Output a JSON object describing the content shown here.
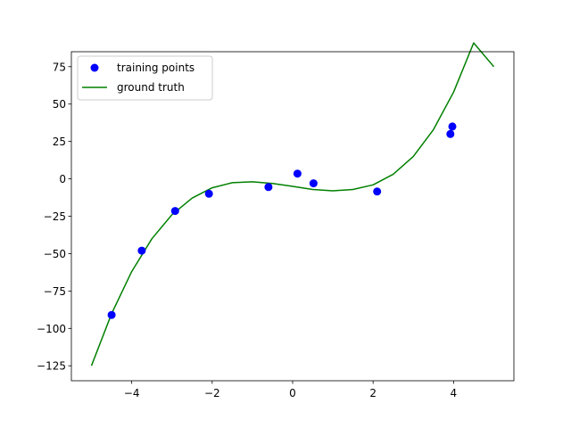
{
  "chart_data": {
    "type": "scatter",
    "title": "",
    "xlabel": "",
    "ylabel": "",
    "xlim": [
      -5.5,
      5.5
    ],
    "ylim": [
      -135,
      85
    ],
    "x_ticks": [
      -4,
      -2,
      0,
      2,
      4
    ],
    "y_ticks": [
      75,
      50,
      25,
      0,
      -25,
      -50,
      -75,
      -100,
      -125
    ],
    "x_tick_labels": [
      "−4",
      "−2",
      "0",
      "2",
      "4"
    ],
    "y_tick_labels": [
      "75",
      "50",
      "25",
      "0",
      "−25",
      "−50",
      "−75",
      "−100",
      "−125"
    ],
    "grid": false,
    "legend_position": "upper left",
    "series": [
      {
        "name": "training points",
        "kind": "scatter",
        "color": "#0000ff",
        "x": [
          -4.5,
          -3.75,
          -2.92,
          -2.08,
          -0.6,
          0.12,
          0.52,
          2.1,
          3.92,
          3.97
        ],
        "y": [
          -91,
          -48,
          -21.5,
          -10,
          -5.5,
          3.5,
          -3,
          -8.5,
          30,
          35
        ]
      },
      {
        "name": "ground truth",
        "kind": "line",
        "color": "#008000",
        "x": [
          -5.0,
          -4.5,
          -4.0,
          -3.5,
          -3.0,
          -2.5,
          -2.0,
          -1.5,
          -1.0,
          -0.5,
          0.0,
          0.5,
          1.0,
          1.5,
          2.0,
          2.5,
          3.0,
          3.5,
          4.0,
          4.5,
          5.0
        ],
        "y": [
          -125,
          -90.1,
          -62.0,
          -40.1,
          -24.0,
          -12.9,
          -6.0,
          -2.6,
          -2.0,
          -3.1,
          -5.0,
          -7.1,
          -8.0,
          -7.1,
          -4.0,
          3.1,
          15.0,
          32.9,
          58.0,
          90.9,
          75
        ]
      }
    ]
  }
}
